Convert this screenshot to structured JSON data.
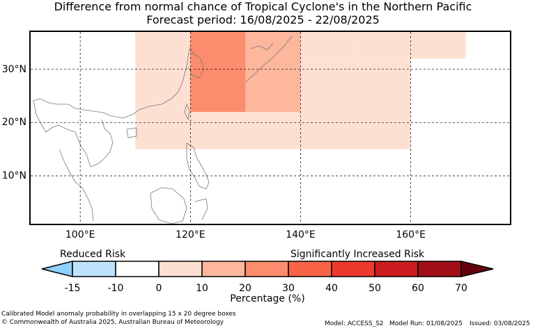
{
  "title_line1": "Difference from normal chance of Tropical Cyclone's in the Northern Pacific",
  "title_line2": "Forecast period: 16/08/2025 - 22/08/2025",
  "map": {
    "lon_range": [
      91,
      178
    ],
    "lat_range": [
      1,
      37
    ],
    "lon_ticks": [
      100,
      120,
      140,
      160
    ],
    "lon_tick_labels": [
      "100°E",
      "120°E",
      "140°E",
      "160°E"
    ],
    "lat_ticks": [
      30,
      20,
      10
    ],
    "lat_tick_labels": [
      "30°N",
      "20°N",
      "10°N"
    ],
    "grid": true,
    "cells": [
      {
        "lon0": 91,
        "lon1": 100,
        "lat0": 1,
        "lat1": 37,
        "value": -10
      },
      {
        "lon0": 100,
        "lon1": 110,
        "lat0": 15,
        "lat1": 37,
        "value": -5
      },
      {
        "lon0": 100,
        "lon1": 120,
        "lat0": 1,
        "lat1": 15,
        "value": -10
      },
      {
        "lon0": 110,
        "lon1": 120,
        "lat0": 22,
        "lat1": 37,
        "value": 5
      },
      {
        "lon0": 110,
        "lon1": 120,
        "lat0": 15,
        "lat1": 22,
        "value": 0
      },
      {
        "lon0": 120,
        "lon1": 130,
        "lat0": 22,
        "lat1": 37,
        "value": 25
      },
      {
        "lon0": 130,
        "lon1": 140,
        "lat0": 22,
        "lat1": 37,
        "value": 15
      },
      {
        "lon0": 140,
        "lon1": 150,
        "lat0": 32,
        "lat1": 37,
        "value": 5
      },
      {
        "lon0": 120,
        "lon1": 140,
        "lat0": 15,
        "lat1": 22,
        "value": 5
      },
      {
        "lon0": 120,
        "lon1": 140,
        "lat0": 8,
        "lat1": 15,
        "value": -5
      },
      {
        "lon0": 120,
        "lon1": 140,
        "lat0": 1,
        "lat1": 8,
        "value": -10
      },
      {
        "lon0": 140,
        "lon1": 160,
        "lat0": 15,
        "lat1": 32,
        "value": 0
      },
      {
        "lon0": 150,
        "lon1": 160,
        "lat0": 32,
        "lat1": 37,
        "value": 0
      },
      {
        "lon0": 140,
        "lon1": 160,
        "lat0": 1,
        "lat1": 15,
        "value": -5
      },
      {
        "lon0": 160,
        "lon1": 170,
        "lat0": 32,
        "lat1": 37,
        "value": 0
      },
      {
        "lon0": 160,
        "lon1": 170,
        "lat0": 1,
        "lat1": 32,
        "value": -5
      },
      {
        "lon0": 170,
        "lon1": 178,
        "lat0": 22,
        "lat1": 37,
        "value": -5
      },
      {
        "lon0": 170,
        "lon1": 178,
        "lat0": 15,
        "lat1": 22,
        "value": -10
      },
      {
        "lon0": 170,
        "lon1": 178,
        "lat0": 1,
        "lat1": 15,
        "value": -5
      }
    ]
  },
  "legend": {
    "left_label": "Reduced Risk",
    "right_label": "Significantly Increased Risk",
    "ticks": [
      "-15",
      "-10",
      "0",
      "10",
      "20",
      "30",
      "40",
      "50",
      "60",
      "70"
    ],
    "colors": [
      "#bde3fd",
      "#ffffff",
      "#fee0d3",
      "#fcb79d",
      "#fb8c6d",
      "#fa6446",
      "#ee3a2d",
      "#ca1c1e",
      "#a11016"
    ],
    "under_color": "#8fd0fe",
    "over_color": "#67000d",
    "xlabel": "Percentage (%)"
  },
  "footer": {
    "note": "Calibrated Model anomaly probability in overlapping 15 x 20 degree boxes",
    "copyright": "© Commonwealth of Australia 2025, Australian Bureau of Meteorology",
    "model": "Model: ACCESS_S2",
    "run": "Model Run: 01/08/2025",
    "issued": "Issued: 03/08/2025"
  }
}
